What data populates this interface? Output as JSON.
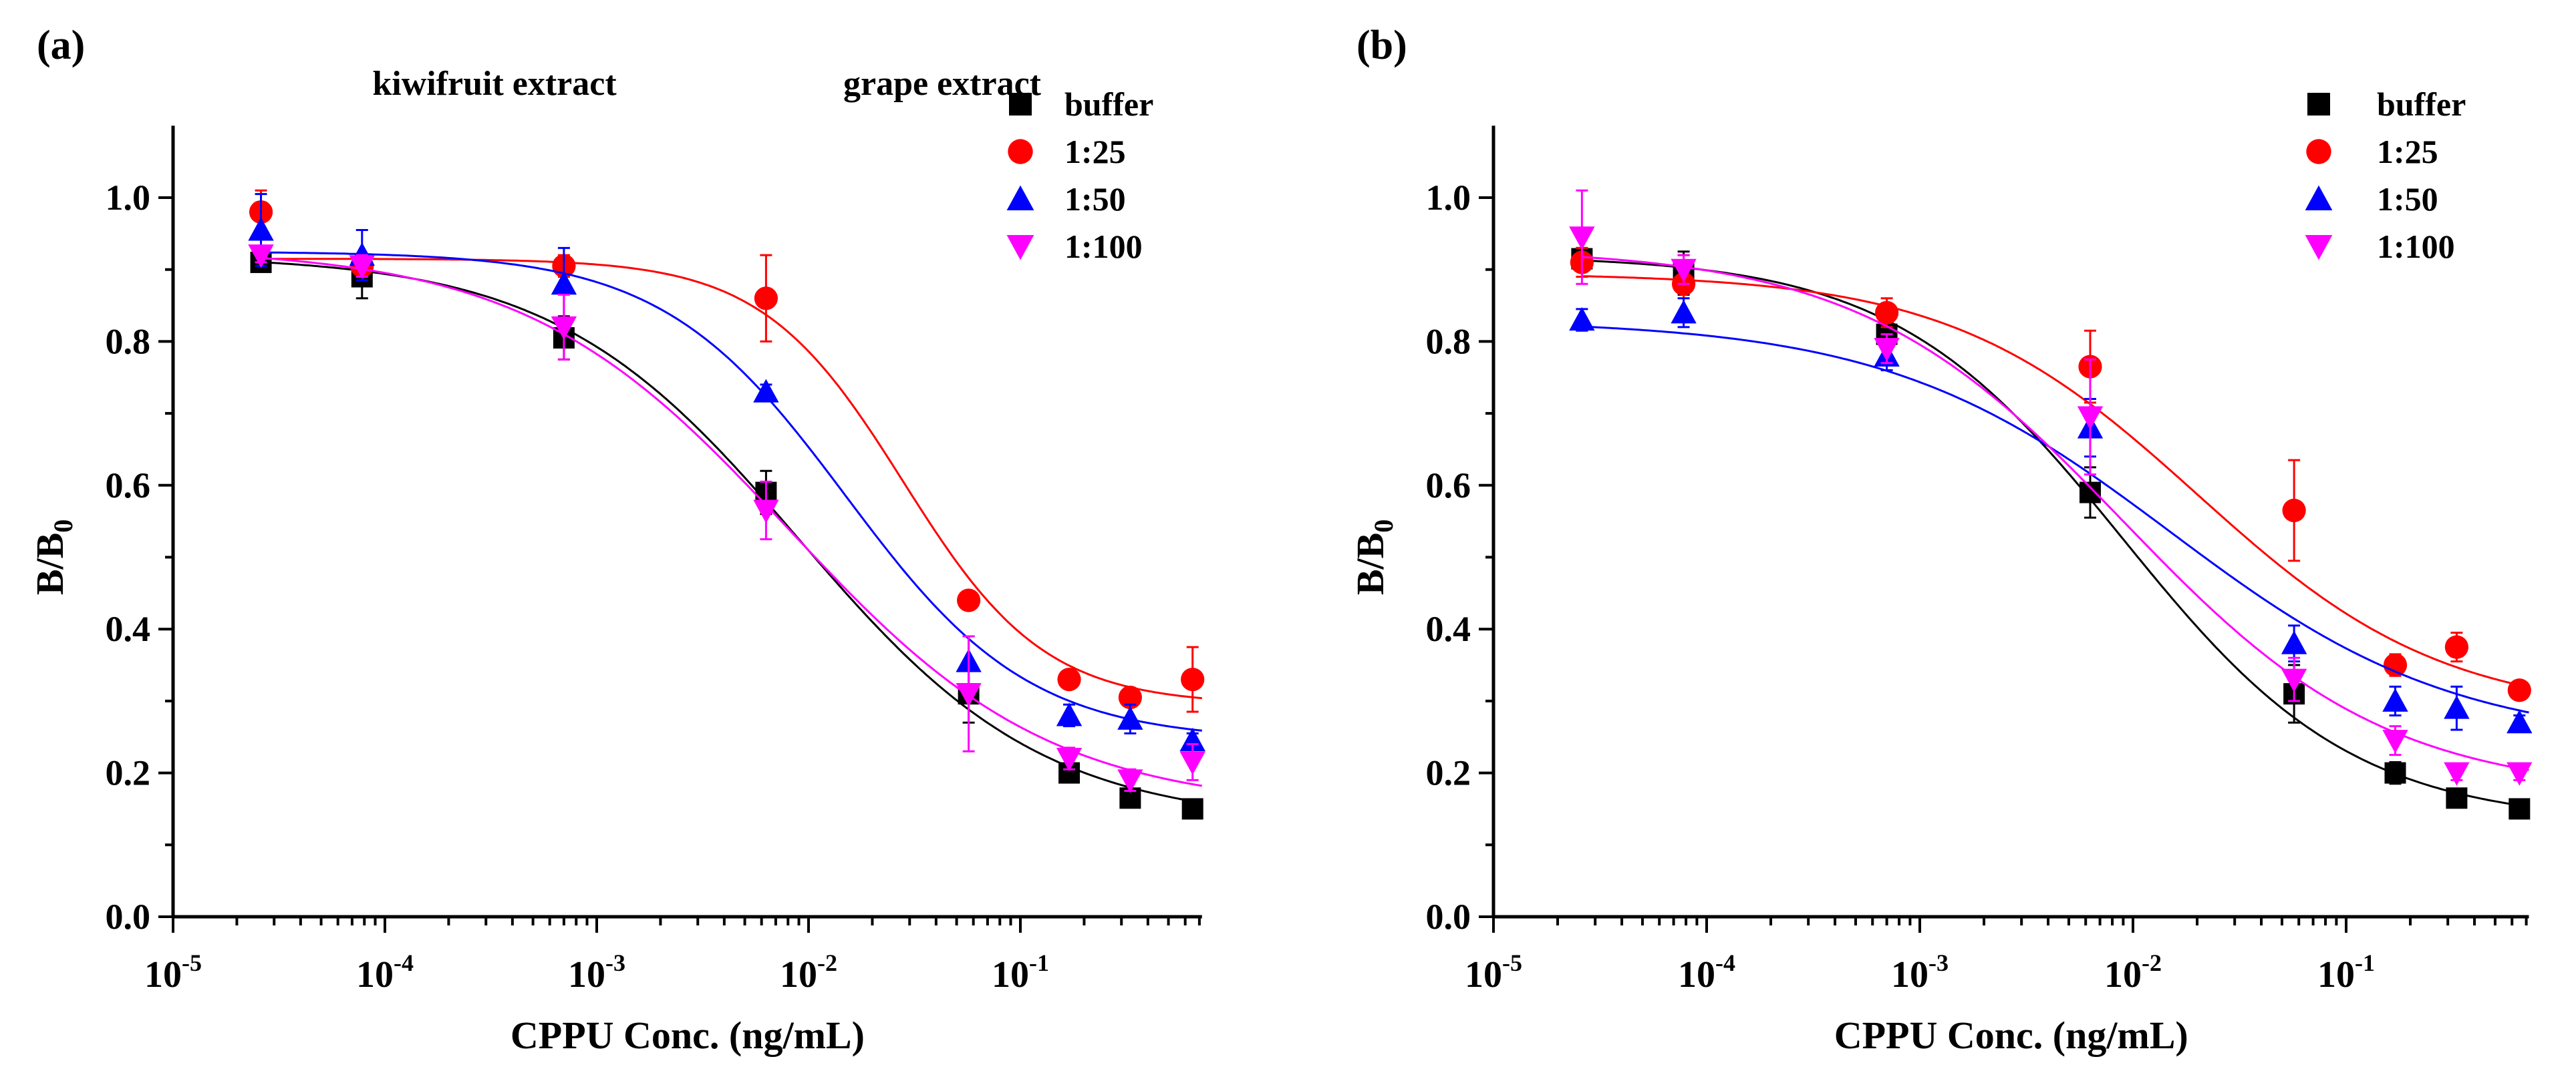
{
  "chart_data": [
    {
      "type": "scatter",
      "panel_label": "(a)",
      "title": "kiwifruit extract",
      "xlabel": "CPPU Conc. (ng/mL)",
      "ylabel": "B/B",
      "ylabel_sub": "0",
      "x_scale": "log",
      "xlim": [
        1e-05,
        0.72
      ],
      "ylim": [
        0,
        1.1
      ],
      "x_ticks": [
        {
          "base": "10",
          "exp": "-5",
          "value": 1e-05
        },
        {
          "base": "10",
          "exp": "-4",
          "value": 0.0001
        },
        {
          "base": "10",
          "exp": "-3",
          "value": 0.001
        },
        {
          "base": "10",
          "exp": "-2",
          "value": 0.01
        },
        {
          "base": "10",
          "exp": "-1",
          "value": 0.1
        }
      ],
      "y_ticks": [
        "0.0",
        "0.2",
        "0.4",
        "0.6",
        "0.8",
        "1.0"
      ],
      "grid": false,
      "legend_placement": "top-right",
      "x": [
        2.6e-05,
        7.8e-05,
        0.0007,
        0.0063,
        0.057,
        0.17,
        0.33,
        0.65
      ],
      "series": [
        {
          "name": "buffer",
          "marker": "square",
          "color": "#000000",
          "y": [
            0.91,
            0.89,
            0.805,
            0.59,
            0.31,
            0.2,
            0.165,
            0.15
          ],
          "err": [
            0.01,
            0.03,
            0.03,
            0.03,
            0.04,
            0.01,
            0.01,
            0.01
          ],
          "fit": {
            "top": 0.92,
            "bottom": 0.13,
            "x0": 0.009,
            "p": 0.75
          }
        },
        {
          "name": "1:25",
          "marker": "circle",
          "color": "#ff0000",
          "y": [
            0.98,
            0.905,
            0.905,
            0.86,
            0.44,
            0.33,
            0.305,
            0.33
          ],
          "err": [
            0.03,
            0.01,
            0.015,
            0.06,
            0.01,
            0.01,
            0.01,
            0.045
          ],
          "fit": {
            "top": 0.915,
            "bottom": 0.295,
            "x0": 0.028,
            "p": 1.3
          }
        },
        {
          "name": "1:50",
          "marker": "triangle-up",
          "color": "#0000ff",
          "y": [
            0.955,
            0.92,
            0.88,
            0.73,
            0.355,
            0.28,
            0.275,
            0.245
          ],
          "err": [
            0.05,
            0.035,
            0.05,
            0.01,
            0.035,
            0.015,
            0.02,
            0.01
          ],
          "fit": {
            "top": 0.925,
            "bottom": 0.245,
            "x0": 0.015,
            "p": 1.0
          }
        },
        {
          "name": "1:100",
          "marker": "triangle-down",
          "color": "#ff00ff",
          "y": [
            0.92,
            0.905,
            0.82,
            0.565,
            0.31,
            0.22,
            0.19,
            0.215
          ],
          "err": [
            0.01,
            0.015,
            0.045,
            0.04,
            0.08,
            0.015,
            0.015,
            0.025
          ],
          "fit": {
            "top": 0.93,
            "bottom": 0.15,
            "x0": 0.008,
            "p": 0.7
          }
        }
      ]
    },
    {
      "type": "scatter",
      "panel_label": "(b)",
      "title": "grape extract",
      "xlabel": "CPPU Conc. (ng/mL)",
      "ylabel": "B/B",
      "ylabel_sub": "0",
      "x_scale": "log",
      "xlim": [
        1e-05,
        0.72
      ],
      "ylim": [
        0,
        1.1
      ],
      "x_ticks": [
        {
          "base": "10",
          "exp": "-5",
          "value": 1e-05
        },
        {
          "base": "10",
          "exp": "-4",
          "value": 0.0001
        },
        {
          "base": "10",
          "exp": "-3",
          "value": 0.001
        },
        {
          "base": "10",
          "exp": "-2",
          "value": 0.01
        },
        {
          "base": "10",
          "exp": "-1",
          "value": 0.1
        }
      ],
      "y_ticks": [
        "0.0",
        "0.2",
        "0.4",
        "0.6",
        "0.8",
        "1.0"
      ],
      "grid": false,
      "legend_placement": "top-right",
      "x": [
        2.6e-05,
        7.8e-05,
        0.0007,
        0.0063,
        0.057,
        0.17,
        0.33,
        0.65
      ],
      "series": [
        {
          "name": "buffer",
          "marker": "square",
          "color": "#000000",
          "y": [
            0.915,
            0.895,
            0.81,
            0.59,
            0.31,
            0.2,
            0.165,
            0.15
          ],
          "err": [
            0.015,
            0.03,
            0.015,
            0.035,
            0.04,
            0.015,
            0.01,
            0.01
          ],
          "fit": {
            "top": 0.92,
            "bottom": 0.13,
            "x0": 0.009,
            "p": 0.8
          }
        },
        {
          "name": "1:25",
          "marker": "circle",
          "color": "#ff0000",
          "y": [
            0.91,
            0.88,
            0.84,
            0.765,
            0.565,
            0.35,
            0.375,
            0.315
          ],
          "err": [
            0.02,
            0.04,
            0.02,
            0.05,
            0.07,
            0.015,
            0.02,
            0.01
          ],
          "fit": {
            "top": 0.895,
            "bottom": 0.28,
            "x0": 0.02,
            "p": 0.75
          }
        },
        {
          "name": "1:50",
          "marker": "triangle-up",
          "color": "#0000ff",
          "y": [
            0.83,
            0.84,
            0.78,
            0.68,
            0.38,
            0.3,
            0.29,
            0.27
          ],
          "err": [
            0.015,
            0.02,
            0.02,
            0.04,
            0.025,
            0.02,
            0.03,
            0.01
          ],
          "fit": {
            "top": 0.83,
            "bottom": 0.24,
            "x0": 0.015,
            "p": 0.65
          }
        },
        {
          "name": "1:100",
          "marker": "triangle-down",
          "color": "#ff00ff",
          "y": [
            0.945,
            0.9,
            0.79,
            0.695,
            0.33,
            0.245,
            0.2,
            0.2
          ],
          "err": [
            0.065,
            0.02,
            0.02,
            0.08,
            0.03,
            0.02,
            0.01,
            0.01
          ],
          "fit": {
            "top": 0.93,
            "bottom": 0.17,
            "x0": 0.009,
            "p": 0.7
          }
        }
      ]
    }
  ]
}
